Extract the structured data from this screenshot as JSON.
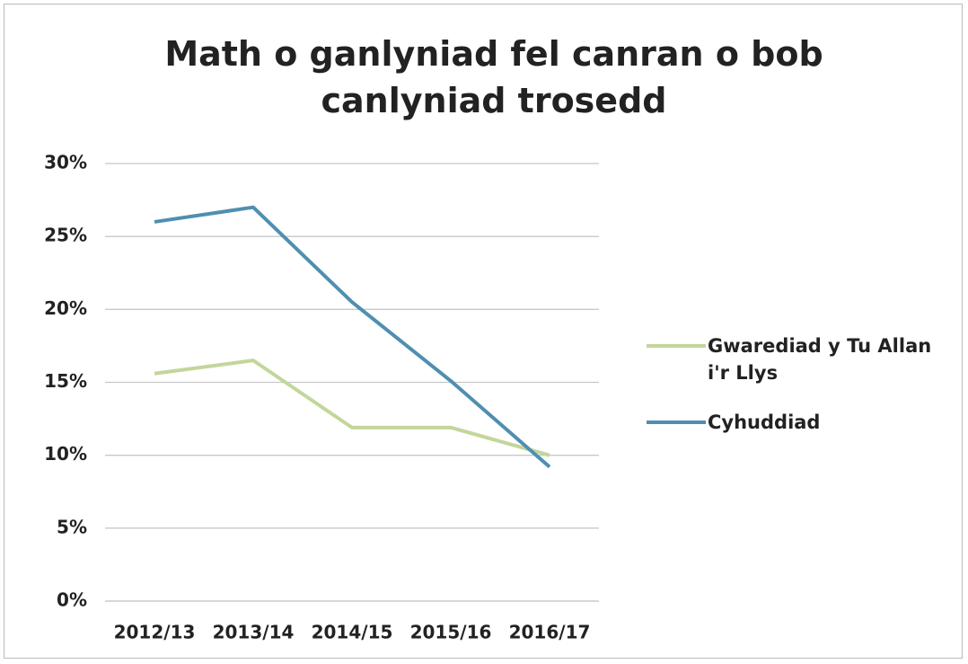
{
  "chart_data": {
    "type": "line",
    "title": "Math o ganlyniad fel canran o bob canlyniad trosedd",
    "categories": [
      "2012/13",
      "2013/14",
      "2014/15",
      "2015/16",
      "2016/17"
    ],
    "series": [
      {
        "name": "Gwarediad y Tu Allan i'r Llys",
        "color": "#c3d69b",
        "values": [
          15.6,
          16.5,
          11.9,
          11.9,
          10.0
        ]
      },
      {
        "name": "Cyhuddiad",
        "color": "#4f8fb0",
        "values": [
          26.0,
          27.0,
          20.5,
          15.1,
          9.2
        ]
      }
    ],
    "ylim": [
      0,
      30
    ],
    "yticks": [
      {
        "value": 0,
        "label": "0%"
      },
      {
        "value": 5,
        "label": "5%"
      },
      {
        "value": 10,
        "label": "10%"
      },
      {
        "value": 15,
        "label": "15%"
      },
      {
        "value": 20,
        "label": "20%"
      },
      {
        "value": 25,
        "label": "25%"
      },
      {
        "value": 30,
        "label": "30%"
      }
    ],
    "grid": true,
    "legend": "right"
  }
}
